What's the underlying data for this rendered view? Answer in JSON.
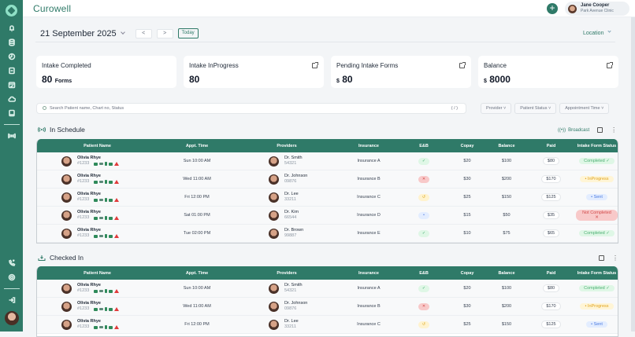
{
  "app": {
    "title": "Curowell"
  },
  "user": {
    "name": "Jane Cooper",
    "clinic": "Park Avenue Clinic"
  },
  "header": {
    "date": "21 September 2025",
    "prev": "<",
    "next": ">",
    "today": "Today",
    "location": "Location",
    "add": "+"
  },
  "sidebar": {
    "items": [
      "bell-icon",
      "database-icon",
      "chart-pie-icon",
      "clipboard-icon",
      "calendar-check-icon",
      "cloud-icon",
      "tablet-icon",
      "broadcast-icon"
    ],
    "bottom": [
      "phone-call-icon",
      "settings-icon",
      "logout-icon"
    ]
  },
  "cards": [
    {
      "title": "Intake Completed",
      "value": "80",
      "unit": "Forms",
      "prefix": ""
    },
    {
      "title": "Intake InProgress",
      "value": "80",
      "unit": "",
      "prefix": ""
    },
    {
      "title": "Pending Intake Forms",
      "value": "80",
      "unit": "",
      "prefix": "$"
    },
    {
      "title": "Balance",
      "value": "8000",
      "unit": "",
      "prefix": "$"
    }
  ],
  "search": {
    "placeholder": "Search Patient name, Chart no, Status",
    "shortcut": "( / )"
  },
  "filters": [
    "Provider",
    "Patient Status",
    "Appointment Time"
  ],
  "sections": {
    "in_schedule": {
      "title": "In Schedule",
      "broadcast": "Broadcast"
    },
    "checked_in": {
      "title": "Checked In"
    }
  },
  "columns": [
    "Patient Name",
    "Appt. Time",
    "Providers",
    "Insurance",
    "E&B",
    "Copay",
    "Balance",
    "Paid",
    "Intake Form Status"
  ],
  "status_colors": {
    "completed": "#dff7e6",
    "inprogress": "#fff5d6",
    "sent": "#e3edff",
    "notcompleted": "#f8c9c9"
  },
  "in_schedule_rows": [
    {
      "patient": "Olivia Rhye",
      "pid": "#1233",
      "time": "Sun 10:00 AM",
      "provider": "Dr. Smith",
      "prov_id": "54321",
      "insurance": "Insurance A",
      "eb": "✓",
      "eb_type": "ok",
      "copay": "$20",
      "balance": "$100",
      "paid": "$80",
      "status": "Completed ✓",
      "status_type": "completed"
    },
    {
      "patient": "Olivia Rhye",
      "pid": "#1233",
      "time": "Wed 11:00 AM",
      "provider": "Dr. Johnson",
      "prov_id": "09876",
      "insurance": "Insurance B",
      "eb": "✕",
      "eb_type": "fail",
      "copay": "$30",
      "balance": "$200",
      "paid": "$170",
      "status": "• InProgress",
      "status_type": "inprogress"
    },
    {
      "patient": "Olivia Rhye",
      "pid": "#1233",
      "time": "Fri 12:00 PM",
      "provider": "Dr. Lee",
      "prov_id": "33211",
      "insurance": "Insurance C",
      "eb": "↺",
      "eb_type": "pending",
      "copay": "$25",
      "balance": "$150",
      "paid": "$125",
      "status": "• Sent",
      "status_type": "sent"
    },
    {
      "patient": "Olivia Rhye",
      "pid": "#1233",
      "time": "Sat 01:00 PM",
      "provider": "Dr. Kim",
      "prov_id": "66544",
      "insurance": "Insurance D",
      "eb": "•",
      "eb_type": "info",
      "copay": "$15",
      "balance": "$50",
      "paid": "$35",
      "status": "Not Completed ✕",
      "status_type": "notcompleted"
    },
    {
      "patient": "Olivia Rhye",
      "pid": "#1233",
      "time": "Tue 02:00 PM",
      "provider": "Dr. Brown",
      "prov_id": "99887",
      "insurance": "Insurance E",
      "eb": "✓",
      "eb_type": "ok",
      "copay": "$10",
      "balance": "$75",
      "paid": "$65",
      "status": "Completed ✓",
      "status_type": "completed"
    }
  ],
  "checked_in_rows": [
    {
      "patient": "Olivia Rhye",
      "pid": "#1233",
      "time": "Sun 10:00 AM",
      "provider": "Dr. Smith",
      "prov_id": "54321",
      "insurance": "Insurance A",
      "eb": "✓",
      "eb_type": "ok",
      "copay": "$20",
      "balance": "$100",
      "paid": "$80",
      "status": "Completed ✓",
      "status_type": "completed"
    },
    {
      "patient": "Olivia Rhye",
      "pid": "#1233",
      "time": "Wed 11:00 AM",
      "provider": "Dr. Johnson",
      "prov_id": "09876",
      "insurance": "Insurance B",
      "eb": "✕",
      "eb_type": "fail",
      "copay": "$30",
      "balance": "$200",
      "paid": "$170",
      "status": "• InProgress",
      "status_type": "inprogress"
    },
    {
      "patient": "Olivia Rhye",
      "pid": "#1233",
      "time": "Fri 12:00 PM",
      "provider": "Dr. Lee",
      "prov_id": "33211",
      "insurance": "Insurance C",
      "eb": "↺",
      "eb_type": "pending",
      "copay": "$25",
      "balance": "$150",
      "paid": "$125",
      "status": "• Sent",
      "status_type": "sent"
    }
  ]
}
